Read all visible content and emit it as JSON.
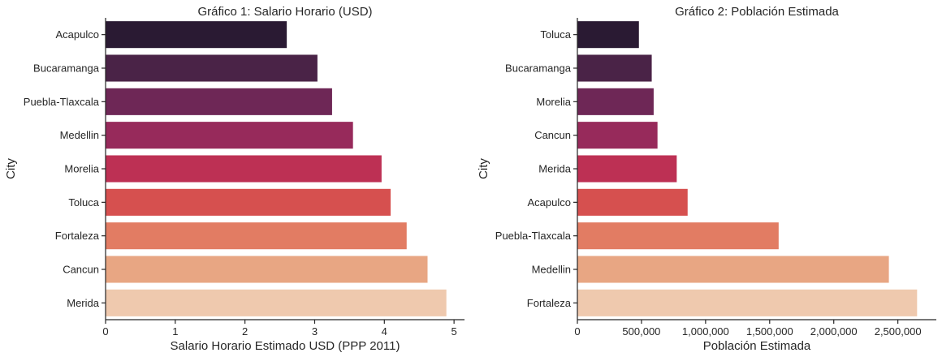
{
  "chart_data": [
    {
      "type": "bar",
      "orientation": "horizontal",
      "title": "Gráfico 1: Salario Horario (USD)",
      "xlabel": "Salario Horario Estimado USD (PPP 2011)",
      "ylabel": "City",
      "categories": [
        "Acapulco",
        "Bucaramanga",
        "Puebla-Tlaxcala",
        "Medellin",
        "Morelia",
        "Toluca",
        "Fortaleza",
        "Cancun",
        "Merida"
      ],
      "values": [
        2.6,
        3.04,
        3.25,
        3.55,
        3.96,
        4.09,
        4.32,
        4.62,
        4.89
      ],
      "xlim": [
        0,
        5.15
      ],
      "xticks": [
        0,
        1,
        2,
        3,
        4,
        5
      ],
      "xtick_labels": [
        "0",
        "1",
        "2",
        "3",
        "4",
        "5"
      ],
      "grid": false,
      "colors": [
        "#2a1a33",
        "#4a2347",
        "#6e2756",
        "#972a5b",
        "#bd3054",
        "#d6504f",
        "#e27c63",
        "#e8a683",
        "#efc9ae"
      ]
    },
    {
      "type": "bar",
      "orientation": "horizontal",
      "title": "Gráfico 2: Población Estimada",
      "xlabel": "Población Estimada",
      "ylabel": "City",
      "categories": [
        "Toluca",
        "Bucaramanga",
        "Morelia",
        "Cancun",
        "Merida",
        "Acapulco",
        "Puebla-Tlaxcala",
        "Medellin",
        "Fortaleza"
      ],
      "values": [
        480000,
        580000,
        595000,
        625000,
        775000,
        860000,
        1570000,
        2430000,
        2650000
      ],
      "xlim": [
        0,
        2800000
      ],
      "xticks": [
        0,
        500000,
        1000000,
        1500000,
        2000000,
        2500000
      ],
      "xtick_labels": [
        "0",
        "500,000",
        "1,000,000",
        "1,500,000",
        "2,000,000",
        "2,500,000"
      ],
      "grid": false,
      "colors": [
        "#2a1a33",
        "#4a2347",
        "#6e2756",
        "#972a5b",
        "#bd3054",
        "#d6504f",
        "#e27c63",
        "#e8a683",
        "#efc9ae"
      ]
    }
  ]
}
